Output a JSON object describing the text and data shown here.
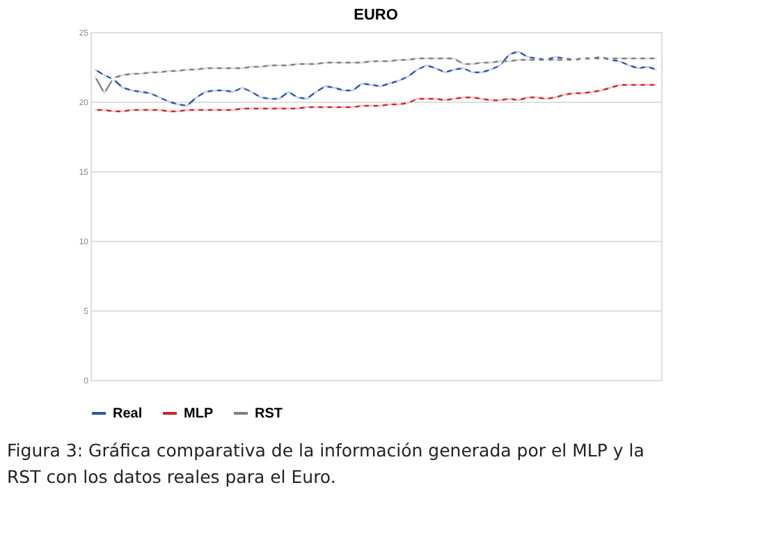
{
  "chart_data": {
    "type": "line",
    "title": "EURO",
    "categories": [
      null,
      null,
      null,
      null,
      null,
      null,
      null,
      null,
      null,
      null,
      null,
      null,
      null,
      null,
      null,
      null,
      null,
      null,
      null,
      null,
      null,
      null,
      null,
      null,
      null,
      null,
      null,
      null,
      null,
      null,
      null,
      null,
      null,
      null,
      null,
      null,
      null,
      null,
      null,
      null,
      null,
      null,
      null,
      null,
      null,
      null,
      null,
      null,
      null,
      null,
      null,
      null,
      null,
      null,
      null,
      null,
      null,
      null,
      null,
      null,
      null,
      null
    ],
    "series": [
      {
        "name": "Real",
        "color": "#2f55a4",
        "values": [
          22.3,
          21.9,
          21.6,
          21.0,
          20.8,
          20.7,
          20.6,
          20.3,
          20.0,
          19.8,
          19.7,
          20.3,
          20.7,
          20.8,
          20.8,
          20.7,
          21.0,
          20.7,
          20.3,
          20.2,
          20.2,
          20.7,
          20.3,
          20.2,
          20.7,
          21.1,
          21.0,
          20.8,
          20.8,
          21.3,
          21.2,
          21.1,
          21.3,
          21.5,
          21.8,
          22.3,
          22.6,
          22.4,
          22.1,
          22.3,
          22.4,
          22.1,
          22.1,
          22.3,
          22.6,
          23.4,
          23.6,
          23.2,
          23.1,
          23.0,
          23.2,
          23.1,
          23.0,
          23.1,
          23.1,
          23.2,
          23.0,
          22.9,
          22.6,
          22.4,
          22.5,
          22.3
        ]
      },
      {
        "name": "MLP",
        "color": "#c8282d",
        "values": [
          19.4,
          19.4,
          19.3,
          19.3,
          19.4,
          19.4,
          19.4,
          19.4,
          19.3,
          19.3,
          19.4,
          19.4,
          19.4,
          19.4,
          19.4,
          19.4,
          19.5,
          19.5,
          19.5,
          19.5,
          19.5,
          19.5,
          19.5,
          19.6,
          19.6,
          19.6,
          19.6,
          19.6,
          19.6,
          19.7,
          19.7,
          19.7,
          19.8,
          19.8,
          19.9,
          20.2,
          20.2,
          20.2,
          20.1,
          20.2,
          20.3,
          20.3,
          20.2,
          20.1,
          20.1,
          20.2,
          20.1,
          20.3,
          20.3,
          20.2,
          20.3,
          20.5,
          20.6,
          20.6,
          20.7,
          20.8,
          21.0,
          21.2,
          21.2,
          21.2,
          21.2,
          21.2
        ]
      },
      {
        "name": "RST",
        "color": "#7f7f7f",
        "values": [
          21.8,
          20.6,
          21.7,
          21.9,
          22.0,
          22.0,
          22.1,
          22.1,
          22.2,
          22.2,
          22.3,
          22.3,
          22.4,
          22.4,
          22.4,
          22.4,
          22.4,
          22.5,
          22.5,
          22.6,
          22.6,
          22.6,
          22.7,
          22.7,
          22.7,
          22.8,
          22.8,
          22.8,
          22.8,
          22.8,
          22.9,
          22.9,
          22.9,
          23.0,
          23.0,
          23.1,
          23.1,
          23.1,
          23.1,
          23.1,
          22.7,
          22.7,
          22.8,
          22.8,
          22.9,
          22.9,
          23.0,
          23.0,
          23.0,
          23.0,
          23.0,
          23.0,
          23.0,
          23.1,
          23.1,
          23.1,
          23.1,
          23.1,
          23.1,
          23.1,
          23.1,
          23.1
        ]
      }
    ],
    "ylim": [
      0,
      25
    ],
    "yticks": [
      0,
      5,
      10,
      15,
      20,
      25
    ],
    "grid": "y",
    "legend": "bottom",
    "marker": "circle",
    "line_style": "solid",
    "tick_labels": "y",
    "annotations": [
      "Figura 3: Gráfica comparativa de la información generada por el MLP y la RST con los datos reales para el Euro."
    ]
  }
}
